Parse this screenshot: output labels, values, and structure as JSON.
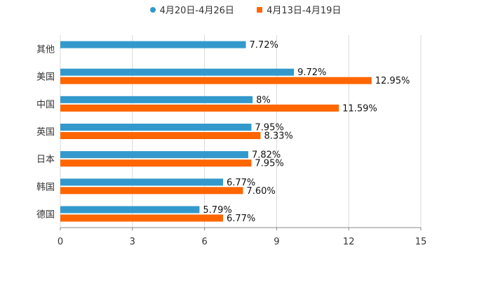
{
  "chart_data": {
    "type": "bar",
    "orientation": "horizontal",
    "categories": [
      "其他",
      "美国",
      "中国",
      "英国",
      "日本",
      "韩国",
      "德国"
    ],
    "series": [
      {
        "name": "4月20日-4月26日",
        "color": "#3399cc",
        "values": [
          7.72,
          9.72,
          8,
          7.95,
          7.82,
          6.77,
          5.79
        ],
        "labels": [
          "7.72%",
          "9.72%",
          "8%",
          "7.95%",
          "7.82%",
          "6.77%",
          "5.79%"
        ]
      },
      {
        "name": "4月13日-4月19日",
        "color": "#ff6600",
        "values": [
          null,
          12.95,
          11.59,
          8.33,
          7.95,
          7.6,
          6.77
        ],
        "labels": [
          "",
          "12.95%",
          "11.59%",
          "8.33%",
          "7.95%",
          "7.60%",
          "6.77%"
        ]
      }
    ],
    "x_ticks": [
      "0",
      "3",
      "6",
      "9",
      "12",
      "15"
    ],
    "xlim": [
      0,
      15
    ],
    "grid": true,
    "legend_position": "top-center"
  }
}
